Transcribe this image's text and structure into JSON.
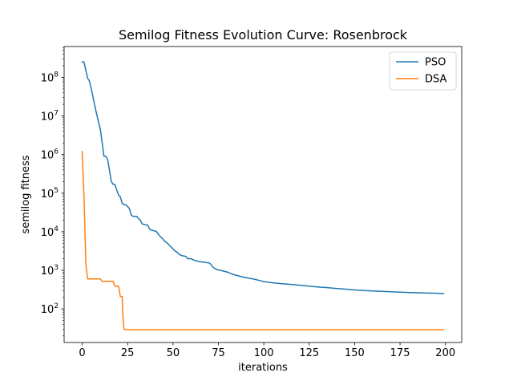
{
  "chart_data": {
    "type": "line",
    "title": "Semilog Fitness Evolution Curve: Rosenbrock",
    "xlabel": "iterations",
    "ylabel": "semilog fitness",
    "yscale": "log",
    "xlim": [
      -9.95,
      208.95
    ],
    "ylim": [
      13.5,
      630000000
    ],
    "xticks": [
      0,
      25,
      50,
      75,
      100,
      125,
      150,
      175,
      200
    ],
    "xtick_labels": [
      "0",
      "25",
      "50",
      "75",
      "100",
      "125",
      "150",
      "175",
      "200"
    ],
    "yticks": [
      {
        "value": 100,
        "base": "10",
        "exp": "2"
      },
      {
        "value": 1000,
        "base": "10",
        "exp": "3"
      },
      {
        "value": 10000,
        "base": "10",
        "exp": "4"
      },
      {
        "value": 100000,
        "base": "10",
        "exp": "5"
      },
      {
        "value": 1000000,
        "base": "10",
        "exp": "6"
      },
      {
        "value": 10000000,
        "base": "10",
        "exp": "7"
      },
      {
        "value": 100000000,
        "base": "10",
        "exp": "8"
      }
    ],
    "grid": false,
    "legend_position": "top-right",
    "series": [
      {
        "name": "PSO",
        "color": "#1f77b4",
        "points": [
          [
            0,
            250000000
          ],
          [
            1,
            250000000
          ],
          [
            2,
            150000000
          ],
          [
            3,
            95000000
          ],
          [
            4,
            80000000
          ],
          [
            5,
            50000000
          ],
          [
            6,
            30000000
          ],
          [
            7,
            18000000
          ],
          [
            8,
            11000000
          ],
          [
            9,
            7000000
          ],
          [
            10,
            4500000
          ],
          [
            11,
            2000000
          ],
          [
            12,
            900000
          ],
          [
            13,
            900000
          ],
          [
            14,
            750000
          ],
          [
            15,
            400000
          ],
          [
            16,
            200000
          ],
          [
            17,
            170000
          ],
          [
            18,
            170000
          ],
          [
            19,
            120000
          ],
          [
            20,
            90000
          ],
          [
            21,
            80000
          ],
          [
            22,
            55000
          ],
          [
            23,
            50000
          ],
          [
            24,
            50000
          ],
          [
            25,
            45000
          ],
          [
            26,
            40000
          ],
          [
            27,
            27000
          ],
          [
            28,
            25000
          ],
          [
            30,
            25000
          ],
          [
            31,
            22000
          ],
          [
            32,
            20000
          ],
          [
            33,
            16000
          ],
          [
            35,
            15000
          ],
          [
            36,
            15000
          ],
          [
            37,
            12000
          ],
          [
            38,
            11000
          ],
          [
            40,
            10500
          ],
          [
            41,
            10000
          ],
          [
            42,
            8500
          ],
          [
            43,
            7500
          ],
          [
            44,
            6800
          ],
          [
            45,
            6000
          ],
          [
            46,
            5400
          ],
          [
            47,
            5000
          ],
          [
            48,
            4500
          ],
          [
            49,
            4000
          ],
          [
            50,
            3600
          ],
          [
            51,
            3200
          ],
          [
            52,
            3000
          ],
          [
            53,
            2700
          ],
          [
            54,
            2500
          ],
          [
            55,
            2400
          ],
          [
            57,
            2300
          ],
          [
            58,
            2000
          ],
          [
            60,
            2000
          ],
          [
            62,
            1800
          ],
          [
            64,
            1700
          ],
          [
            66,
            1650
          ],
          [
            68,
            1600
          ],
          [
            70,
            1550
          ],
          [
            71,
            1400
          ],
          [
            72,
            1200
          ],
          [
            74,
            1050
          ],
          [
            76,
            1000
          ],
          [
            78,
            950
          ],
          [
            80,
            900
          ],
          [
            82,
            820
          ],
          [
            84,
            760
          ],
          [
            86,
            720
          ],
          [
            88,
            680
          ],
          [
            90,
            650
          ],
          [
            92,
            620
          ],
          [
            94,
            600
          ],
          [
            96,
            570
          ],
          [
            98,
            540
          ],
          [
            100,
            510
          ],
          [
            103,
            490
          ],
          [
            106,
            470
          ],
          [
            110,
            450
          ],
          [
            115,
            430
          ],
          [
            120,
            410
          ],
          [
            125,
            390
          ],
          [
            130,
            370
          ],
          [
            135,
            355
          ],
          [
            140,
            340
          ],
          [
            145,
            325
          ],
          [
            150,
            310
          ],
          [
            155,
            300
          ],
          [
            160,
            292
          ],
          [
            165,
            285
          ],
          [
            170,
            278
          ],
          [
            175,
            272
          ],
          [
            180,
            266
          ],
          [
            185,
            262
          ],
          [
            190,
            258
          ],
          [
            195,
            254
          ],
          [
            199,
            250
          ]
        ]
      },
      {
        "name": "DSA",
        "color": "#ff7f0e",
        "points": [
          [
            0,
            1200000
          ],
          [
            1,
            80000
          ],
          [
            2,
            1500
          ],
          [
            3,
            600
          ],
          [
            4,
            600
          ],
          [
            10,
            600
          ],
          [
            11,
            520
          ],
          [
            17,
            520
          ],
          [
            18,
            390
          ],
          [
            20,
            390
          ],
          [
            21,
            210
          ],
          [
            22,
            210
          ],
          [
            22.5,
            60
          ],
          [
            23,
            30
          ],
          [
            24,
            29
          ],
          [
            30,
            29
          ],
          [
            50,
            29
          ],
          [
            100,
            29
          ],
          [
            150,
            29
          ],
          [
            199,
            29
          ]
        ]
      }
    ]
  }
}
